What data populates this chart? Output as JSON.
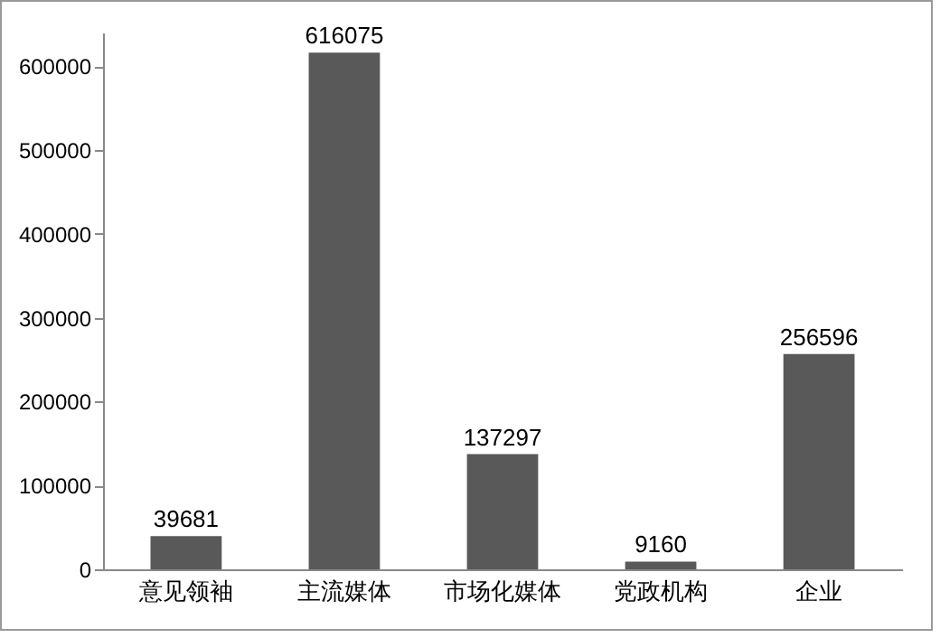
{
  "chart_data": {
    "type": "bar",
    "categories": [
      "意见领袖",
      "主流媒体",
      "市场化媒体",
      "党政机构",
      "企业"
    ],
    "values": [
      39681,
      616075,
      137297,
      9160,
      256596
    ],
    "color": "#595959",
    "ylim": [
      0,
      640000
    ],
    "yticks": [
      0,
      100000,
      200000,
      300000,
      400000,
      500000,
      600000
    ],
    "grid": false,
    "data_labels": true
  }
}
